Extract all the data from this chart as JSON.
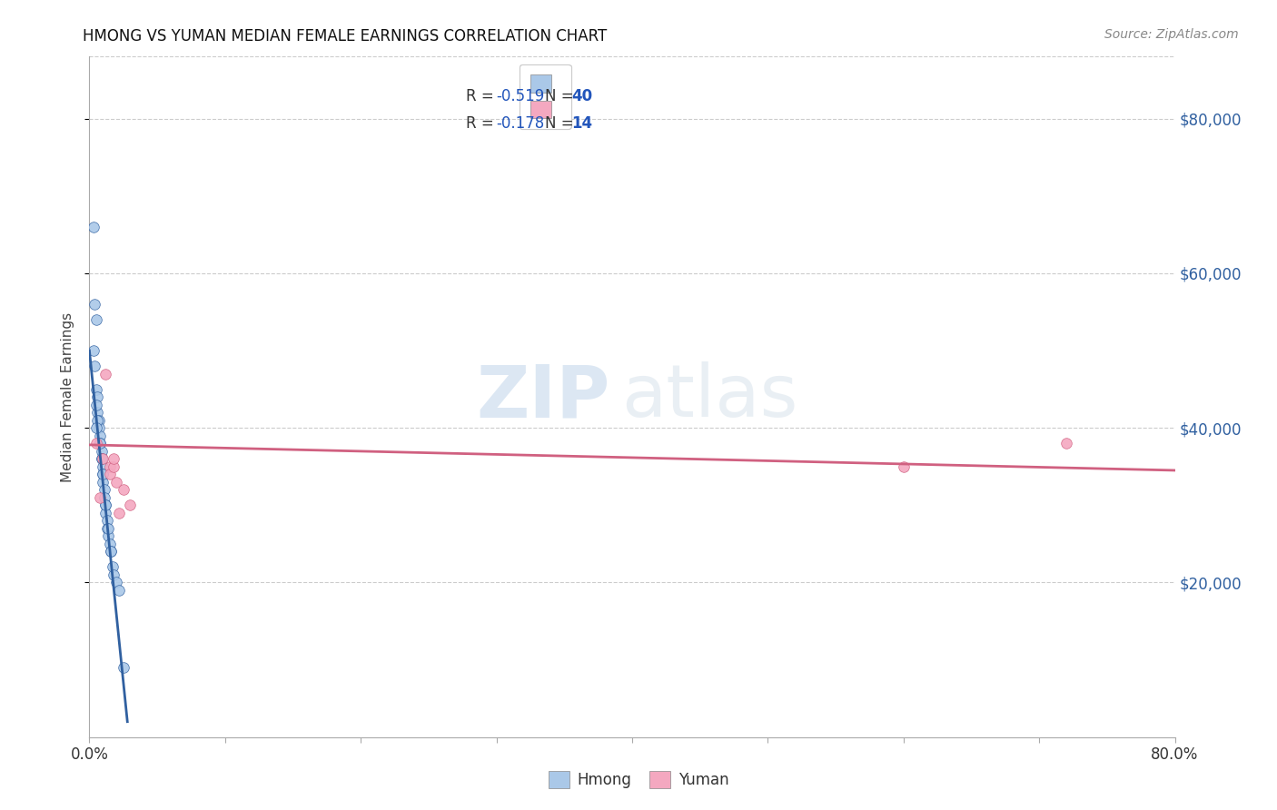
{
  "title": "HMONG VS YUMAN MEDIAN FEMALE EARNINGS CORRELATION CHART",
  "source": "Source: ZipAtlas.com",
  "ylabel": "Median Female Earnings",
  "ytick_labels": [
    "$20,000",
    "$40,000",
    "$60,000",
    "$80,000"
  ],
  "ytick_values": [
    20000,
    40000,
    60000,
    80000
  ],
  "xmin": 0.0,
  "xmax": 0.8,
  "ymin": 0,
  "ymax": 88000,
  "watermark_zip": "ZIP",
  "watermark_atlas": "atlas",
  "legend_entries": [
    {
      "r_val": "-0.519",
      "n_val": "40"
    },
    {
      "r_val": "-0.178",
      "n_val": "14"
    }
  ],
  "legend_bottom": [
    "Hmong",
    "Yuman"
  ],
  "hmong_scatter_x": [
    0.003,
    0.004,
    0.005,
    0.005,
    0.006,
    0.006,
    0.007,
    0.007,
    0.008,
    0.008,
    0.009,
    0.009,
    0.01,
    0.01,
    0.01,
    0.011,
    0.011,
    0.012,
    0.012,
    0.013,
    0.013,
    0.014,
    0.015,
    0.016,
    0.017,
    0.018,
    0.02,
    0.022,
    0.025,
    0.003,
    0.004,
    0.005,
    0.006,
    0.008,
    0.009,
    0.01,
    0.012,
    0.014,
    0.016,
    0.005
  ],
  "hmong_scatter_y": [
    66000,
    56000,
    54000,
    45000,
    44000,
    42000,
    41000,
    40000,
    39000,
    38000,
    37000,
    36000,
    35000,
    34000,
    33000,
    32000,
    31000,
    30000,
    29000,
    28000,
    27000,
    26000,
    25000,
    24000,
    22000,
    21000,
    20000,
    19000,
    9000,
    50000,
    48000,
    43000,
    41000,
    38000,
    36000,
    34000,
    30000,
    27000,
    24000,
    40000
  ],
  "yuman_scatter_x": [
    0.005,
    0.01,
    0.012,
    0.015,
    0.015,
    0.018,
    0.018,
    0.02,
    0.025,
    0.03,
    0.6,
    0.72,
    0.008,
    0.022
  ],
  "yuman_scatter_y": [
    38000,
    36000,
    47000,
    35000,
    34000,
    35000,
    36000,
    33000,
    32000,
    30000,
    35000,
    38000,
    31000,
    29000
  ],
  "hmong_line_x": [
    0.0,
    0.028
  ],
  "hmong_line_y": [
    50000,
    2000
  ],
  "yuman_line_x": [
    0.0,
    0.8
  ],
  "yuman_line_y": [
    37800,
    34500
  ],
  "hmong_color": "#3060a0",
  "hmong_scatter_color": "#aac8e8",
  "yuman_color": "#d06080",
  "yuman_scatter_color": "#f4a8c0",
  "background_color": "#ffffff",
  "grid_color": "#cccccc"
}
